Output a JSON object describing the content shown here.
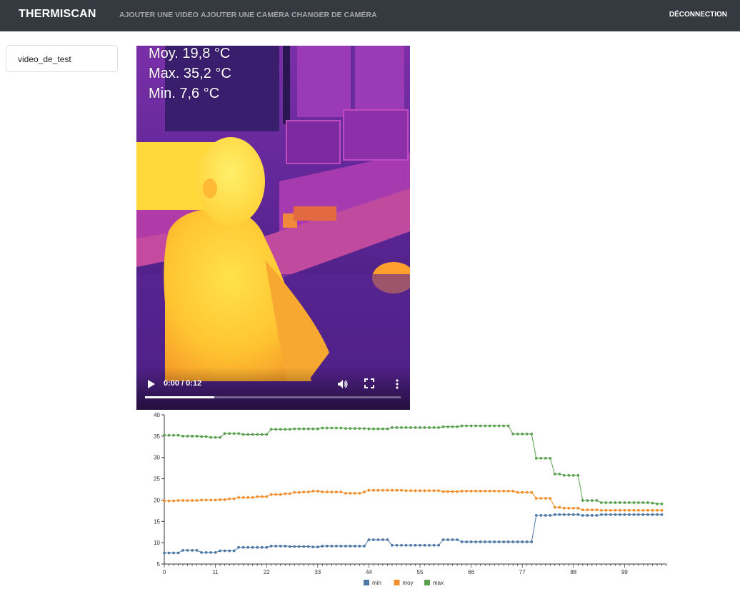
{
  "navbar": {
    "brand": "THERMISCAN",
    "links": [
      "AJOUTER UNE VIDEO",
      "AJOUTER UNE CAMÉRA",
      "CHANGER DE CAMÉRA"
    ],
    "logout": "DÉCONNECTION"
  },
  "sidebar": {
    "items": [
      {
        "label": "video_de_test"
      }
    ]
  },
  "video": {
    "overlay": [
      "Moy.  19,8 °C",
      "Max.  35,2 °C",
      "Min.  7,6 °C"
    ],
    "time": "0:00 / 0:12",
    "progress": 0.27,
    "icons": [
      "play-icon",
      "volume-icon",
      "fullscreen-icon",
      "more-vertical-icon"
    ]
  },
  "colors": {
    "min": "#4e79a7",
    "moy": "#f28e2b",
    "max": "#59a14f",
    "navbar": "#343a40"
  },
  "chart_data": {
    "type": "line",
    "title": "",
    "xlabel": "",
    "ylabel": "",
    "xlim": [
      0,
      108
    ],
    "ylim": [
      5,
      40
    ],
    "yticks": [
      5,
      10,
      15,
      20,
      25,
      30,
      35,
      40
    ],
    "xticks": [
      0,
      11,
      22,
      33,
      44,
      55,
      66,
      77,
      88,
      99
    ],
    "legend": "bottom",
    "series": [
      {
        "name": "min",
        "color": "#4e79a7",
        "values": [
          7.6,
          7.6,
          7.6,
          7.6,
          8.2,
          8.2,
          8.2,
          8.2,
          7.7,
          7.7,
          7.7,
          7.7,
          8.1,
          8.1,
          8.1,
          8.1,
          8.9,
          8.9,
          8.9,
          8.9,
          8.9,
          8.9,
          8.9,
          9.2,
          9.2,
          9.2,
          9.2,
          9.1,
          9.1,
          9.1,
          9.1,
          9.1,
          9.0,
          9.0,
          9.2,
          9.2,
          9.2,
          9.2,
          9.2,
          9.2,
          9.2,
          9.2,
          9.2,
          9.2,
          10.7,
          10.7,
          10.7,
          10.7,
          10.7,
          9.4,
          9.4,
          9.4,
          9.4,
          9.4,
          9.4,
          9.4,
          9.4,
          9.4,
          9.4,
          9.4,
          10.7,
          10.7,
          10.7,
          10.7,
          10.2,
          10.2,
          10.2,
          10.2,
          10.2,
          10.2,
          10.2,
          10.2,
          10.2,
          10.2,
          10.2,
          10.2,
          10.2,
          10.2,
          10.2,
          10.2,
          16.4,
          16.4,
          16.4,
          16.4,
          16.6,
          16.6,
          16.6,
          16.6,
          16.6,
          16.6,
          16.4,
          16.4,
          16.4,
          16.4,
          16.6,
          16.6,
          16.6,
          16.6,
          16.6,
          16.6,
          16.6,
          16.6,
          16.6,
          16.6,
          16.6,
          16.6,
          16.6,
          16.6
        ]
      },
      {
        "name": "moy",
        "color": "#f28e2b",
        "values": [
          19.8,
          19.8,
          19.8,
          19.9,
          19.9,
          19.9,
          19.9,
          19.9,
          20.0,
          20.0,
          20.0,
          20.0,
          20.1,
          20.1,
          20.3,
          20.3,
          20.6,
          20.6,
          20.6,
          20.6,
          20.8,
          20.8,
          20.8,
          21.3,
          21.3,
          21.3,
          21.5,
          21.5,
          21.8,
          21.8,
          21.9,
          21.9,
          22.1,
          22.1,
          21.9,
          21.9,
          21.9,
          21.9,
          21.9,
          21.6,
          21.6,
          21.6,
          21.6,
          21.9,
          22.3,
          22.3,
          22.3,
          22.3,
          22.3,
          22.3,
          22.3,
          22.3,
          22.2,
          22.2,
          22.2,
          22.2,
          22.2,
          22.2,
          22.2,
          22.2,
          22.0,
          22.0,
          22.0,
          22.0,
          22.1,
          22.1,
          22.1,
          22.1,
          22.1,
          22.1,
          22.1,
          22.1,
          22.1,
          22.1,
          22.1,
          22.1,
          21.8,
          21.8,
          21.8,
          21.8,
          20.4,
          20.4,
          20.4,
          20.4,
          18.3,
          18.3,
          18.1,
          18.1,
          18.1,
          18.1,
          17.7,
          17.7,
          17.7,
          17.7,
          17.6,
          17.6,
          17.6,
          17.6,
          17.6,
          17.6,
          17.6,
          17.6,
          17.6,
          17.6,
          17.6,
          17.6,
          17.6,
          17.6
        ]
      },
      {
        "name": "max",
        "color": "#59a14f",
        "values": [
          35.2,
          35.2,
          35.2,
          35.2,
          35.0,
          35.0,
          35.0,
          35.0,
          34.9,
          34.9,
          34.7,
          34.7,
          34.7,
          35.6,
          35.6,
          35.6,
          35.6,
          35.4,
          35.4,
          35.4,
          35.4,
          35.4,
          35.4,
          36.6,
          36.6,
          36.6,
          36.6,
          36.6,
          36.7,
          36.7,
          36.7,
          36.7,
          36.7,
          36.7,
          36.9,
          36.9,
          36.9,
          36.9,
          36.9,
          36.8,
          36.8,
          36.8,
          36.8,
          36.8,
          36.7,
          36.7,
          36.7,
          36.7,
          36.7,
          37.0,
          37.0,
          37.0,
          37.0,
          37.0,
          37.0,
          37.0,
          37.0,
          37.0,
          37.0,
          37.0,
          37.2,
          37.2,
          37.2,
          37.2,
          37.4,
          37.4,
          37.4,
          37.4,
          37.4,
          37.4,
          37.4,
          37.4,
          37.4,
          37.4,
          37.4,
          35.5,
          35.5,
          35.5,
          35.5,
          35.5,
          29.8,
          29.8,
          29.8,
          29.8,
          26.1,
          26.1,
          25.8,
          25.8,
          25.8,
          25.8,
          19.9,
          19.9,
          19.9,
          19.9,
          19.4,
          19.4,
          19.4,
          19.4,
          19.4,
          19.4,
          19.4,
          19.4,
          19.4,
          19.4,
          19.4,
          19.3,
          19.1,
          19.1
        ]
      }
    ]
  }
}
